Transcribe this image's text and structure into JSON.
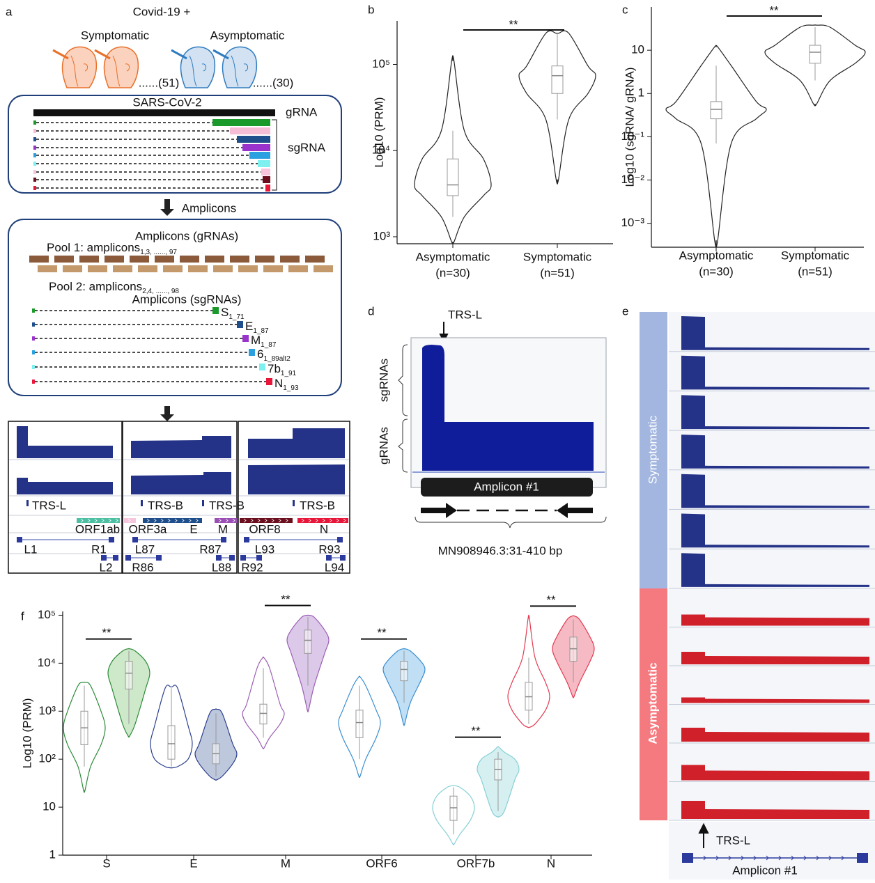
{
  "panel_a": {
    "label": "a",
    "heading": "Covid-19 +",
    "groups": [
      "Symptomatic",
      "Asymptomatic"
    ],
    "counts": [
      "......(51)",
      "......(30)"
    ],
    "genome": "SARS-CoV-2",
    "grna": "gRNA",
    "sgrna": "sgRNA",
    "arrow_label": "Amplicons",
    "amplicons_title": "Amplicons (gRNAs)",
    "pools": [
      {
        "label": "Pool 1: amplicons",
        "sub": "1,3, ......, 97"
      },
      {
        "label": "Pool 2: amplicons",
        "sub": "2,4, ......, 98"
      }
    ],
    "sg_title": "Amplicons (sgRNAs)",
    "sg_amplicons": [
      {
        "gene": "S",
        "sub": "1_71"
      },
      {
        "gene": "E",
        "sub": "1_87"
      },
      {
        "gene": "M",
        "sub": "1_87"
      },
      {
        "gene": "6",
        "sub": "1_89alt2"
      },
      {
        "gene": "7b",
        "sub": "1_91"
      },
      {
        "gene": "N",
        "sub": "1_93"
      }
    ],
    "trs": [
      "TRS-L",
      "TRS-B",
      "TRS-B",
      "TRS-B"
    ],
    "genes": [
      "ORF1ab",
      "ORF3a",
      "E",
      "M",
      "ORF8",
      "N"
    ],
    "primers": [
      "L1",
      "R1",
      "L2",
      "L87",
      "R87",
      "R86",
      "L88",
      "L93",
      "R93",
      "R92",
      "L94"
    ]
  },
  "chart_data": [
    {
      "type": "violin",
      "panel_label": "b",
      "ylabel": "Log10 (PRM)",
      "log_scale": true,
      "ylim": [
        830,
        320000
      ],
      "yticks": [
        {
          "value": 1000,
          "label": "10³"
        },
        {
          "value": 10000,
          "label": "10⁴"
        },
        {
          "value": 100000,
          "label": "10⁵"
        }
      ],
      "categories": [
        "Asymptomatic",
        "Symptomatic"
      ],
      "category_notes": [
        "(n=30)",
        "(n=51)"
      ],
      "significance": "**",
      "color": "#222222",
      "groups": [
        [
          {
            "min": 870,
            "whisker_low": 1700,
            "q1": 3000,
            "median": 4000,
            "q3": 8000,
            "whisker_high": 17000,
            "max": 110000
          }
        ],
        [
          {
            "min": 4600,
            "whisker_low": 23000,
            "q1": 46000,
            "median": 74000,
            "q3": 96000,
            "whisker_high": 230000,
            "max": 230000
          }
        ]
      ]
    },
    {
      "type": "violin",
      "panel_label": "c",
      "ylabel": "Log10 (sgRNA/ gRNA)",
      "log_scale": true,
      "ylim": [
        0.00028,
        100
      ],
      "yticks": [
        {
          "value": 0.001,
          "label": "10⁻³"
        },
        {
          "value": 0.01,
          "label": "10⁻²"
        },
        {
          "value": 0.1,
          "label": "10⁻¹"
        },
        1,
        10
      ],
      "categories": [
        "Asymptomatic",
        "Symptomatic"
      ],
      "category_notes": [
        "(n=30)",
        "(n=51)"
      ],
      "significance": "**",
      "color": "#222222",
      "groups": [
        [
          {
            "min": 0.0004,
            "whisker_low": 0.07,
            "q1": 0.26,
            "median": 0.43,
            "q3": 0.65,
            "whisker_high": 4.4,
            "max": 12
          }
        ],
        [
          {
            "min": 0.57,
            "whisker_low": 2,
            "q1": 5,
            "median": 9,
            "q3": 13,
            "whisker_high": 34,
            "max": 38
          }
        ]
      ]
    },
    {
      "type": "violin",
      "panel_label": "f",
      "ylabel": "Log10 (PRM)",
      "log_scale": true,
      "ylim": [
        1,
        120000
      ],
      "yticks": [
        1,
        10,
        {
          "value": 100,
          "label": "10²"
        },
        {
          "value": 1000,
          "label": "10³"
        },
        {
          "value": 10000,
          "label": "10⁴"
        },
        {
          "value": 100000,
          "label": "10⁵"
        }
      ],
      "categories": [
        "S",
        "E",
        "M",
        "ORF6",
        "ORF7b",
        "N"
      ],
      "significance": [
        "**",
        null,
        "**",
        "**",
        "**",
        "**"
      ],
      "colors": [
        "#2e8b3a",
        "#2b3f8e",
        "#9b5fb5",
        "#3b8fd1",
        "#86d0d6",
        "#e33a50"
      ],
      "fills": [
        "#c9e5c4",
        "#b7c2d9",
        "#d8c2e6",
        "#b9dcf4",
        "#d2eef0",
        "#f4b3bd"
      ],
      "groups": [
        [
          {
            "min": 22,
            "whisker_low": 70,
            "q1": 200,
            "median": 450,
            "q3": 1000,
            "whisker_high": 3400,
            "max": 4000
          },
          {
            "min": 300,
            "whisker_low": 540,
            "q1": 2900,
            "median": 6200,
            "q3": 11000,
            "whisker_high": 18000,
            "max": 20000
          }
        ],
        [
          {
            "min": 66,
            "whisker_low": 70,
            "q1": 100,
            "median": 210,
            "q3": 500,
            "whisker_high": 3000,
            "max": 3200
          },
          {
            "min": 37,
            "whisker_low": 44,
            "q1": 80,
            "median": 130,
            "q3": 210,
            "whisker_high": 900,
            "max": 1100
          }
        ],
        [
          {
            "min": 170,
            "whisker_low": 280,
            "q1": 540,
            "median": 900,
            "q3": 1400,
            "whisker_high": 7900,
            "max": 13000
          },
          {
            "min": 1050,
            "whisker_low": 3400,
            "q1": 16000,
            "median": 30000,
            "q3": 49000,
            "whisker_high": 91000,
            "max": 100000
          }
        ],
        [
          {
            "min": 44,
            "whisker_low": 100,
            "q1": 280,
            "median": 580,
            "q3": 1050,
            "whisker_high": 3400,
            "max": 5200
          },
          {
            "min": 540,
            "whisker_low": 1500,
            "q1": 4300,
            "median": 7400,
            "q3": 11000,
            "whisker_high": 18000,
            "max": 20000
          }
        ],
        [
          {
            "min": 1.7,
            "whisker_low": 2.7,
            "q1": 5.3,
            "median": 9.7,
            "q3": 17,
            "whisker_high": 26,
            "max": 28
          },
          {
            "min": 6.3,
            "whisker_low": 8.3,
            "q1": 37,
            "median": 61,
            "q3": 100,
            "whisker_high": 140,
            "max": 180
          }
        ],
        [
          {
            "min": 460,
            "whisker_low": 540,
            "q1": 1050,
            "median": 2000,
            "q3": 4000,
            "whisker_high": 13000,
            "max": 87000
          },
          {
            "min": 2000,
            "whisker_low": 4000,
            "q1": 11000,
            "median": 20000,
            "q3": 35000,
            "whisker_high": 81000,
            "max": 97000
          }
        ]
      ]
    }
  ],
  "panel_d": {
    "label": "d",
    "marker": "TRS-L",
    "rows": [
      "sgRNAs",
      "gRNAs"
    ],
    "amplicon": "Amplicon #1",
    "region": "MN908946.3:31-410 bp"
  },
  "panel_e": {
    "label": "e",
    "groups": [
      "Symptomatic",
      "Asymptomatic"
    ],
    "marker": "TRS-L",
    "amplicon": "Amplicon #1"
  }
}
